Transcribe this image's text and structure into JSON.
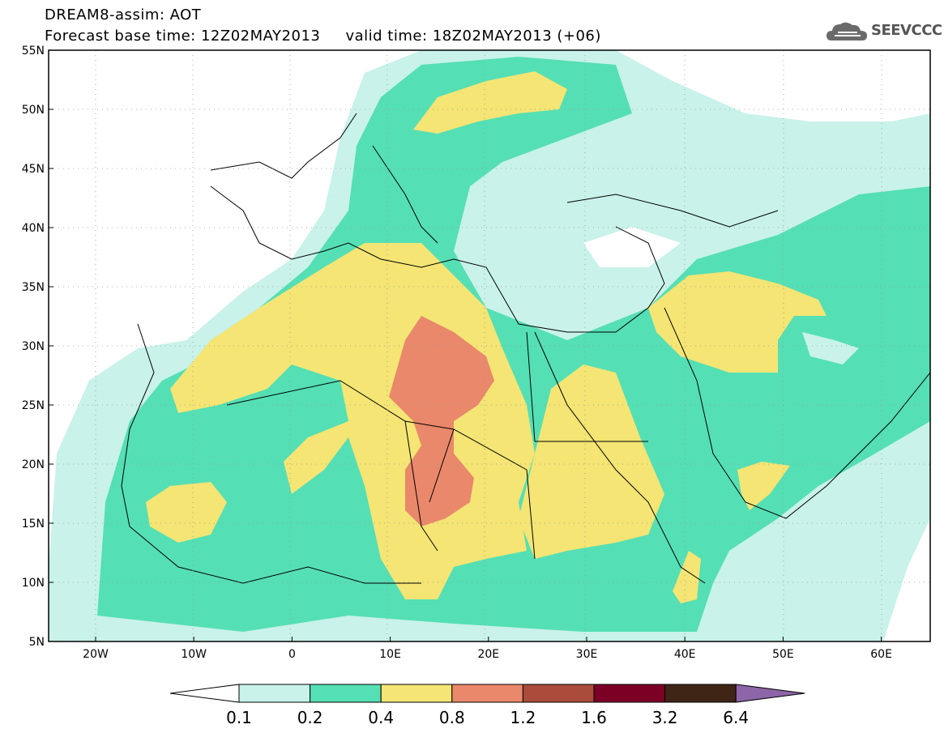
{
  "header": {
    "model_title": "DREAM8-assim: AOT",
    "forecast_line": "Forecast base time: 12Z02MAY2013     valid time: 18Z02MAY2013 (+06)",
    "logo_text": "SEEVCCC"
  },
  "map": {
    "lat_labels": [
      "55N",
      "50N",
      "45N",
      "40N",
      "35N",
      "30N",
      "25N",
      "20N",
      "15N",
      "10N",
      "5N"
    ],
    "lon_labels": [
      "20W",
      "10W",
      "0",
      "10E",
      "20E",
      "30E",
      "40E",
      "50E",
      "60E"
    ],
    "background_color": "#ffffff"
  },
  "legend": {
    "levels": [
      "0.1",
      "0.2",
      "0.4",
      "0.8",
      "1.2",
      "1.6",
      "3.2",
      "6.4"
    ],
    "colors": [
      "#c8f2ea",
      "#55dfb4",
      "#f4e574",
      "#e9886a",
      "#aa4b3c",
      "#7c0026",
      "#3f2516",
      "#8c66a8"
    ],
    "lower_extension_color": "#ffffff"
  }
}
